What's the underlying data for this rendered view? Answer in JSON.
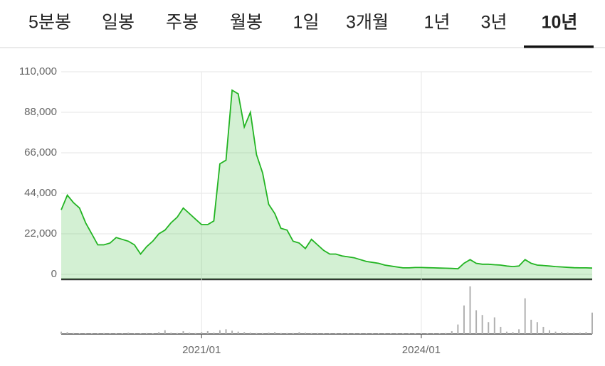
{
  "tabs": {
    "items": [
      "5분봉",
      "일봉",
      "주봉",
      "월봉",
      "1일",
      "3개월",
      "1년",
      "3년",
      "10년"
    ],
    "active": 8
  },
  "chart_data": [
    {
      "type": "line",
      "color": "#22b422",
      "area": true,
      "grid": true,
      "x": [
        "2019/02",
        "2019/03",
        "2019/04",
        "2019/05",
        "2019/06",
        "2019/07",
        "2019/08",
        "2019/09",
        "2019/10",
        "2019/11",
        "2019/12",
        "2020/01",
        "2020/02",
        "2020/03",
        "2020/04",
        "2020/05",
        "2020/06",
        "2020/07",
        "2020/08",
        "2020/09",
        "2020/10",
        "2020/11",
        "2020/12",
        "2021/01",
        "2021/02",
        "2021/03",
        "2021/04",
        "2021/05",
        "2021/06",
        "2021/07",
        "2021/08",
        "2021/09",
        "2021/10",
        "2021/11",
        "2021/12",
        "2022/01",
        "2022/02",
        "2022/03",
        "2022/04",
        "2022/05",
        "2022/06",
        "2022/07",
        "2022/08",
        "2022/09",
        "2022/10",
        "2022/11",
        "2022/12",
        "2023/01",
        "2023/02",
        "2023/03",
        "2023/04",
        "2023/05",
        "2023/06",
        "2023/07",
        "2023/08",
        "2023/09",
        "2023/10",
        "2023/11",
        "2023/12",
        "2024/01",
        "2024/02",
        "2024/03",
        "2024/04",
        "2024/05",
        "2024/06",
        "2024/07",
        "2024/08",
        "2024/09",
        "2024/10",
        "2024/11",
        "2024/12",
        "2025/01",
        "2025/02",
        "2025/03",
        "2025/04",
        "2025/05",
        "2025/06",
        "2025/07",
        "2025/08",
        "2025/09",
        "2025/10",
        "2025/11",
        "2025/12",
        "2026/01",
        "2026/02",
        "2026/03",
        "2026/04",
        "2026/05"
      ],
      "values": [
        35000,
        43000,
        39000,
        36000,
        28000,
        22000,
        16000,
        16000,
        17000,
        20000,
        19000,
        18000,
        16000,
        11000,
        15000,
        18000,
        22000,
        24000,
        28000,
        31000,
        36000,
        33000,
        30000,
        27000,
        27000,
        29000,
        60000,
        62000,
        100000,
        98000,
        80000,
        88000,
        65000,
        55000,
        38000,
        33000,
        25000,
        24000,
        18000,
        17000,
        14000,
        19000,
        16000,
        13000,
        11000,
        11000,
        10000,
        9500,
        9000,
        8000,
        7000,
        6500,
        6000,
        5000,
        4500,
        4000,
        3500,
        3500,
        3700,
        3700,
        3600,
        3500,
        3400,
        3300,
        3200,
        3000,
        6000,
        8000,
        6000,
        5500,
        5500,
        5200,
        5000,
        4500,
        4200,
        4500,
        8000,
        6000,
        5000,
        4800,
        4500,
        4200,
        4000,
        3800,
        3600,
        3500,
        3500,
        3400
      ],
      "ylim": [
        0,
        110000
      ],
      "yticks": [
        0,
        {
          "value": 22000,
          "label": "22,000"
        },
        {
          "value": 44000,
          "label": "44,000"
        },
        {
          "value": 66000,
          "label": "66,000"
        },
        {
          "value": 88000,
          "label": "88,000"
        },
        {
          "value": 110000,
          "label": "110,000"
        }
      ],
      "xticks": [
        "2021/01",
        "2024/01"
      ]
    },
    {
      "type": "bar",
      "color": "#b0b0b0",
      "ylim": [
        0,
        100
      ],
      "values": [
        5,
        4,
        2,
        1,
        1,
        1,
        1,
        2,
        1,
        1,
        1,
        3,
        1,
        1,
        2,
        1,
        4,
        8,
        3,
        2,
        6,
        3,
        2,
        4,
        6,
        3,
        8,
        10,
        7,
        5,
        4,
        3,
        2,
        2,
        3,
        4,
        2,
        2,
        2,
        4,
        3,
        2,
        2,
        1,
        1,
        1,
        1,
        1,
        1,
        1,
        1,
        1,
        1,
        1,
        1,
        1,
        1,
        1,
        1,
        1,
        1,
        1,
        1,
        2,
        6,
        20,
        60,
        100,
        50,
        40,
        25,
        35,
        15,
        5,
        4,
        10,
        75,
        30,
        25,
        15,
        8,
        5,
        4,
        3,
        3,
        3,
        4,
        45
      ]
    }
  ]
}
